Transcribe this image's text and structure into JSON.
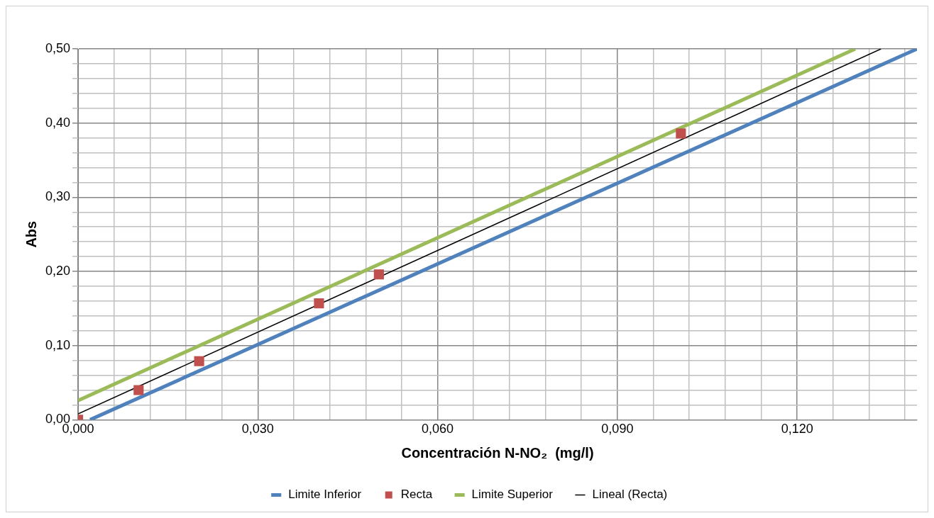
{
  "chart_data": {
    "type": "scatter",
    "xlabel": "Concentración N-NO₂  (mg/l)",
    "ylabel": "Abs",
    "xlim": [
      0,
      0.14
    ],
    "ylim": [
      0,
      0.5
    ],
    "xticks": [
      {
        "value": 0,
        "label": "0,000"
      },
      {
        "value": 0.006,
        "label": null
      },
      {
        "value": 0.012,
        "label": null
      },
      {
        "value": 0.018,
        "label": null
      },
      {
        "value": 0.024,
        "label": null
      },
      {
        "value": 0.03,
        "label": "0,030"
      },
      {
        "value": 0.036,
        "label": null
      },
      {
        "value": 0.042,
        "label": null
      },
      {
        "value": 0.048,
        "label": null
      },
      {
        "value": 0.054,
        "label": null
      },
      {
        "value": 0.06,
        "label": "0,060"
      },
      {
        "value": 0.066,
        "label": null
      },
      {
        "value": 0.072,
        "label": null
      },
      {
        "value": 0.078,
        "label": null
      },
      {
        "value": 0.084,
        "label": null
      },
      {
        "value": 0.09,
        "label": "0,090"
      },
      {
        "value": 0.096,
        "label": null
      },
      {
        "value": 0.102,
        "label": null
      },
      {
        "value": 0.108,
        "label": null
      },
      {
        "value": 0.114,
        "label": null
      },
      {
        "value": 0.12,
        "label": "0,120"
      },
      {
        "value": 0.126,
        "label": null
      },
      {
        "value": 0.132,
        "label": null
      },
      {
        "value": 0.138,
        "label": null
      }
    ],
    "yticks": [
      {
        "value": 0,
        "label": "0,00"
      },
      {
        "value": 0.02,
        "label": null
      },
      {
        "value": 0.04,
        "label": null
      },
      {
        "value": 0.06,
        "label": null
      },
      {
        "value": 0.08,
        "label": null
      },
      {
        "value": 0.1,
        "label": "0,10"
      },
      {
        "value": 0.12,
        "label": null
      },
      {
        "value": 0.14,
        "label": null
      },
      {
        "value": 0.16,
        "label": null
      },
      {
        "value": 0.18,
        "label": null
      },
      {
        "value": 0.2,
        "label": "0,20"
      },
      {
        "value": 0.22,
        "label": null
      },
      {
        "value": 0.24,
        "label": null
      },
      {
        "value": 0.26,
        "label": null
      },
      {
        "value": 0.28,
        "label": null
      },
      {
        "value": 0.3,
        "label": "0,30"
      },
      {
        "value": 0.32,
        "label": null
      },
      {
        "value": 0.34,
        "label": null
      },
      {
        "value": 0.36,
        "label": null
      },
      {
        "value": 0.38,
        "label": null
      },
      {
        "value": 0.4,
        "label": "0,40"
      },
      {
        "value": 0.42,
        "label": null
      },
      {
        "value": 0.44,
        "label": null
      },
      {
        "value": 0.46,
        "label": null
      },
      {
        "value": 0.48,
        "label": null
      },
      {
        "value": 0.5,
        "label": "0,50"
      }
    ],
    "grid": true,
    "legend": "bottom",
    "series": [
      {
        "name": "Limite Inferior",
        "type": "line",
        "color": "#4f81bd",
        "x": [
          0.002,
          0.14
        ],
        "values": [
          0,
          0.5
        ]
      },
      {
        "name": "Recta",
        "marker": "square",
        "color": "#c0504d",
        "x": [
          0,
          0.0101,
          0.0202,
          0.0402,
          0.0502,
          0.1006
        ],
        "values": [
          0,
          0.04,
          0.079,
          0.157,
          0.196,
          0.386
        ]
      },
      {
        "name": "Limite Superior",
        "type": "line",
        "color": "#9bbb59",
        "x": [
          0,
          0.1297
        ],
        "values": [
          0.026,
          0.5
        ]
      },
      {
        "name": "Lineal (Recta)",
        "type": "line",
        "color": "#000000",
        "x": [
          0,
          0.134
        ],
        "values": [
          0.008,
          0.5
        ]
      }
    ]
  }
}
